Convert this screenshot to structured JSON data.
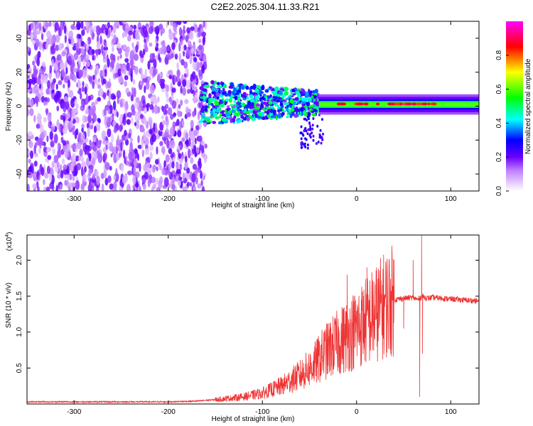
{
  "title": "C2E2.2025.304.11.33.R21",
  "chart_data": [
    {
      "type": "heatmap",
      "xlabel": "Height of straight line (km)",
      "ylabel": "Frequency (Hz)",
      "xlim": [
        -350,
        130
      ],
      "ylim": [
        -50,
        50
      ],
      "xticks": [
        -300,
        -200,
        -100,
        0,
        100
      ],
      "yticks": [
        -40,
        -20,
        0,
        20,
        40
      ],
      "colorbar": {
        "label": "Normalized spectral amplitude",
        "range": [
          0,
          1
        ],
        "ticks": [
          0.0,
          0.2,
          0.4,
          0.6,
          0.8
        ],
        "tick_labels": [
          "0.0",
          "0.2",
          "0.4",
          "0.6",
          "0.8"
        ],
        "colors": [
          "#ffffff",
          "#8000ff",
          "#0000ff",
          "#00ffff",
          "#00ff00",
          "#ffff00",
          "#ff0000",
          "#ff00ff"
        ]
      },
      "regions": [
        {
          "x_range": [
            -350,
            -160
          ],
          "freq_range": [
            -50,
            50
          ],
          "description_level": 0.15
        },
        {
          "x_range": [
            -160,
            -40
          ],
          "freq_range": [
            -12,
            12
          ],
          "description_level": 0.45
        },
        {
          "x_range": [
            -40,
            130
          ],
          "freq_range": [
            -3,
            3
          ],
          "description_level": 0.6,
          "center_freq": 1
        }
      ]
    },
    {
      "type": "line",
      "xlabel": "Height of straight line (km)",
      "ylabel": "SNR (10 * v/v)",
      "y_multiplier": "(x10",
      "y_multiplier_exp": "4",
      "xlim": [
        -350,
        130
      ],
      "ylim": [
        0,
        2.35
      ],
      "xticks": [
        -300,
        -200,
        -100,
        0,
        100
      ],
      "yticks": [
        0.5,
        1.0,
        1.5,
        2.0
      ],
      "ytick_labels": [
        "0.5",
        "1.0",
        "1.5",
        "2.0"
      ],
      "color": "#ee3333",
      "series": [
        {
          "name": "SNR",
          "x": [
            -350,
            -300,
            -250,
            -200,
            -170,
            -150,
            -120,
            -100,
            -80,
            -60,
            -45,
            -35,
            -25,
            -15,
            -5,
            0,
            10,
            20,
            30,
            40,
            50,
            60,
            65,
            70,
            75,
            80,
            90,
            100,
            110,
            120,
            130
          ],
          "y": [
            0.03,
            0.03,
            0.03,
            0.03,
            0.04,
            0.06,
            0.1,
            0.15,
            0.25,
            0.4,
            0.55,
            0.7,
            0.8,
            0.9,
            1.0,
            1.05,
            1.15,
            1.25,
            1.38,
            1.45,
            1.47,
            1.48,
            1.45,
            1.5,
            1.47,
            1.48,
            1.47,
            1.46,
            1.45,
            1.44,
            1.43
          ]
        }
      ],
      "spikes": [
        {
          "x": 67,
          "y": 0.1
        },
        {
          "x": 69,
          "y": 2.35
        },
        {
          "x": 60,
          "y": 2.0
        },
        {
          "x": -10,
          "y": 1.8
        },
        {
          "x": 11,
          "y": 1.9
        },
        {
          "x": 50,
          "y": 1.05
        },
        {
          "x": 70,
          "y": 0.7
        }
      ]
    }
  ]
}
